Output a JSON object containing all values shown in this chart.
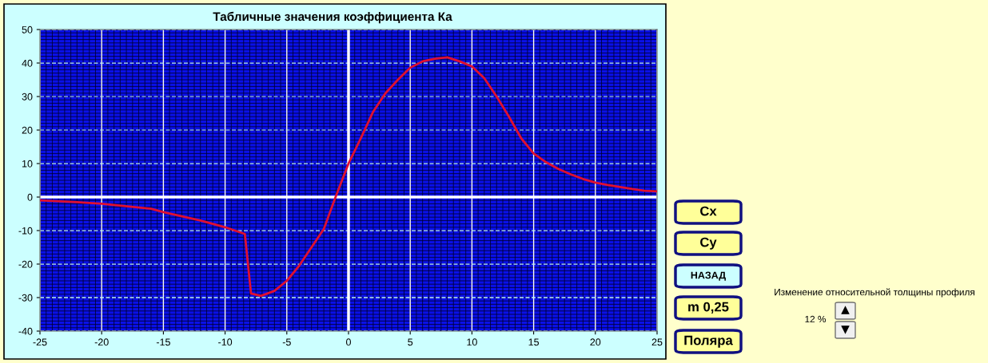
{
  "chart_data": {
    "type": "line",
    "title": "Табличные значения коэффициента Ка",
    "x": [
      -25,
      -22,
      -20,
      -16,
      -15,
      -12,
      -10,
      -8.4,
      -7.9,
      -7.1,
      -6,
      -5,
      -4,
      -3,
      -2,
      -1,
      0,
      1,
      2,
      3,
      4,
      5,
      6,
      7,
      8,
      9,
      10,
      11,
      12,
      13,
      14,
      15,
      16,
      17,
      18,
      19,
      20,
      21,
      22,
      23,
      24,
      25
    ],
    "series": [
      {
        "color": "#e01030",
        "values": [
          -1,
          -1.5,
          -2,
          -3.5,
          -4.5,
          -7,
          -9,
          -11,
          -28.8,
          -29.5,
          -28,
          -25,
          -20.5,
          -15,
          -9.5,
          0.5,
          10,
          17.6,
          25.5,
          31,
          35,
          38.6,
          40.5,
          41.3,
          41.7,
          40.5,
          39,
          35.5,
          30,
          24,
          17.5,
          13,
          10.4,
          8.4,
          6.8,
          5.4,
          4.3,
          3.6,
          3,
          2.4,
          1.9,
          1.7
        ]
      }
    ],
    "xlim": [
      -25,
      25
    ],
    "xticks": [
      -25,
      -20,
      -15,
      -10,
      -5,
      0,
      5,
      10,
      15,
      20,
      25
    ],
    "ylim": [
      -40,
      50
    ],
    "yticks": [
      -40,
      -30,
      -20,
      -10,
      0,
      10,
      20,
      30,
      40,
      50
    ],
    "grid": true,
    "legend": false,
    "marker": "none",
    "line_style": "solid",
    "annotations": [
      "Cx",
      "Cy",
      "НАЗАД",
      "m 0,25",
      "Поляра",
      "Изменение относительной толщины профиля",
      "12 %"
    ]
  }
}
